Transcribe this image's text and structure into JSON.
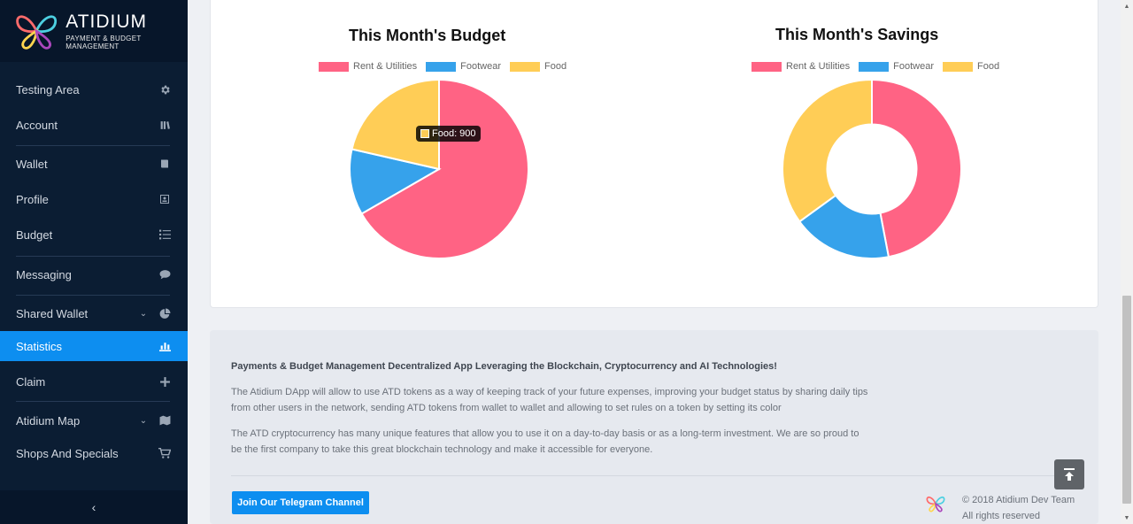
{
  "brand": {
    "name": "ATIDIUM",
    "tagline": "PAYMENT & BUDGET MANAGEMENT"
  },
  "sidebar": {
    "items": [
      {
        "label": "Testing Area",
        "icon": "gear-icon"
      },
      {
        "label": "Account",
        "icon": "library-icon"
      },
      {
        "label": "Wallet",
        "icon": "book-icon"
      },
      {
        "label": "Profile",
        "icon": "id-card-icon"
      },
      {
        "label": "Budget",
        "icon": "list-icon"
      },
      {
        "label": "Messaging",
        "icon": "chat-icon"
      },
      {
        "label": "Shared Wallet",
        "icon": "pie-chart-icon",
        "expandable": true
      },
      {
        "label": "Statistics",
        "icon": "bar-chart-icon",
        "active": true
      },
      {
        "label": "Claim",
        "icon": "plus-icon"
      },
      {
        "label": "Atidium Map",
        "icon": "map-icon",
        "expandable": true
      },
      {
        "label": "Shops And Specials",
        "icon": "cart-icon"
      }
    ],
    "collapse_label": "‹"
  },
  "charts": {
    "budget_title": "This Month's Budget",
    "savings_title": "This Month's Savings",
    "legend": [
      "Rent & Utilities",
      "Footwear",
      "Food"
    ],
    "tooltip": "Food: 900"
  },
  "chart_data": [
    {
      "type": "pie",
      "title": "This Month's Budget",
      "categories": [
        "Rent & Utilities",
        "Footwear",
        "Food"
      ],
      "values": [
        2800,
        500,
        900
      ],
      "colors": [
        "#ff6384",
        "#36a2eb",
        "#ffcd56"
      ]
    },
    {
      "type": "pie",
      "variant": "doughnut",
      "title": "This Month's Savings",
      "categories": [
        "Rent & Utilities",
        "Footwear",
        "Food"
      ],
      "values": [
        47,
        18,
        35
      ],
      "colors": [
        "#ff6384",
        "#36a2eb",
        "#ffcd56"
      ]
    }
  ],
  "footer": {
    "heading": "Payments & Budget Management Decentralized App Leveraging the Blockchain, Cryptocurrency and AI Technologies!",
    "p1": "The Atidium DApp will allow to use ATD tokens as a way of keeping track of your future expenses, improving your budget status by sharing daily tips from other users in the network, sending ATD tokens from wallet to wallet and allowing to set rules on a token by setting its color",
    "p2": "The ATD cryptocurrency has many unique features that allow you to use it on a day-to-day basis or as a long-term investment. We are so proud to be the first company to take this great blockchain technology and make it accessible for everyone.",
    "telegram_button": "Join Our Telegram Channel",
    "copyright_1": "© 2018 Atidium Dev Team",
    "copyright_2": "All rights reserved"
  }
}
